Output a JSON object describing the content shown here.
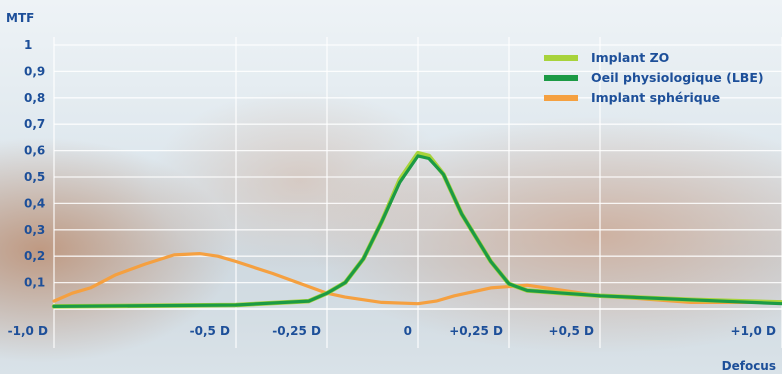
{
  "chart_data": {
    "type": "line",
    "ylabel": "MTF",
    "xlabel": "Defocus",
    "xlim": [
      -1.0,
      1.0
    ],
    "ylim": [
      0,
      1
    ],
    "grid": true,
    "legend_position": "top-right",
    "x_ticks": [
      {
        "value": -1.0,
        "label": "-1,0 D"
      },
      {
        "value": -0.5,
        "label": "-0,5 D"
      },
      {
        "value": -0.25,
        "label": "-0,25 D"
      },
      {
        "value": 0,
        "label": "0"
      },
      {
        "value": 0.25,
        "label": "+0,25 D"
      },
      {
        "value": 0.5,
        "label": "+0,5 D"
      },
      {
        "value": 1.0,
        "label": "+1,0 D"
      }
    ],
    "y_ticks": [
      {
        "value": 0.1,
        "label": "0,1"
      },
      {
        "value": 0.2,
        "label": "0,2"
      },
      {
        "value": 0.3,
        "label": "0,3"
      },
      {
        "value": 0.4,
        "label": "0,4"
      },
      {
        "value": 0.5,
        "label": "0,5"
      },
      {
        "value": 0.6,
        "label": "0,6"
      },
      {
        "value": 0.7,
        "label": "0,7"
      },
      {
        "value": 0.8,
        "label": "0,8"
      },
      {
        "value": 0.9,
        "label": "0,9"
      },
      {
        "value": 1.0,
        "label": "1"
      }
    ],
    "series": [
      {
        "name": "Implant ZO",
        "color": "#a8d33b",
        "points": [
          [
            -1.0,
            0.01
          ],
          [
            -0.5,
            0.015
          ],
          [
            -0.3,
            0.03
          ],
          [
            -0.25,
            0.06
          ],
          [
            -0.2,
            0.1
          ],
          [
            -0.15,
            0.19
          ],
          [
            -0.1,
            0.33
          ],
          [
            -0.05,
            0.49
          ],
          [
            0,
            0.59
          ],
          [
            0.03,
            0.58
          ],
          [
            0.07,
            0.51
          ],
          [
            0.12,
            0.36
          ],
          [
            0.2,
            0.18
          ],
          [
            0.25,
            0.095
          ],
          [
            0.3,
            0.07
          ],
          [
            0.4,
            0.06
          ],
          [
            0.5,
            0.05
          ],
          [
            0.75,
            0.035
          ],
          [
            1.0,
            0.025
          ]
        ]
      },
      {
        "name": "Oeil physiologique (LBE)",
        "color": "#1c9a45",
        "points": [
          [
            -1.0,
            0.01
          ],
          [
            -0.5,
            0.015
          ],
          [
            -0.3,
            0.03
          ],
          [
            -0.25,
            0.06
          ],
          [
            -0.2,
            0.1
          ],
          [
            -0.15,
            0.19
          ],
          [
            -0.1,
            0.33
          ],
          [
            -0.05,
            0.48
          ],
          [
            0,
            0.58
          ],
          [
            0.03,
            0.57
          ],
          [
            0.07,
            0.51
          ],
          [
            0.12,
            0.36
          ],
          [
            0.2,
            0.18
          ],
          [
            0.25,
            0.095
          ],
          [
            0.3,
            0.07
          ],
          [
            0.4,
            0.06
          ],
          [
            0.5,
            0.05
          ],
          [
            0.75,
            0.035
          ],
          [
            1.0,
            0.02
          ]
        ]
      },
      {
        "name": "Implant sphérique",
        "color": "#f5a040",
        "points": [
          [
            -1.0,
            0.03
          ],
          [
            -0.95,
            0.06
          ],
          [
            -0.9,
            0.08
          ],
          [
            -0.83,
            0.13
          ],
          [
            -0.75,
            0.17
          ],
          [
            -0.67,
            0.205
          ],
          [
            -0.6,
            0.21
          ],
          [
            -0.55,
            0.2
          ],
          [
            -0.5,
            0.18
          ],
          [
            -0.4,
            0.135
          ],
          [
            -0.3,
            0.085
          ],
          [
            -0.25,
            0.06
          ],
          [
            -0.2,
            0.045
          ],
          [
            -0.1,
            0.025
          ],
          [
            0,
            0.02
          ],
          [
            0.05,
            0.03
          ],
          [
            0.1,
            0.05
          ],
          [
            0.2,
            0.08
          ],
          [
            0.3,
            0.09
          ],
          [
            0.4,
            0.07
          ],
          [
            0.5,
            0.05
          ],
          [
            0.6,
            0.04
          ],
          [
            0.75,
            0.025
          ],
          [
            1.0,
            0.025
          ]
        ]
      }
    ]
  }
}
